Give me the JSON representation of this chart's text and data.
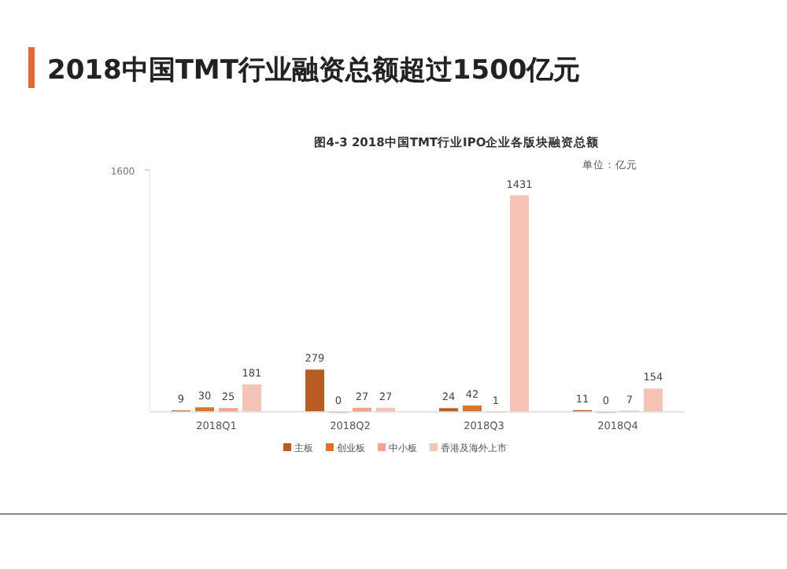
{
  "chart_data": {
    "type": "bar",
    "title": "2018中国TMT行业融资总额超过1500亿元",
    "subtitle": "图4-3 2018中国TMT行业IPO企业各版块融资总额",
    "annotations": [
      "单位：亿元"
    ],
    "categories": [
      "2018Q1",
      "2018Q2",
      "2018Q3",
      "2018Q4"
    ],
    "series": [
      {
        "name": "主板",
        "color": "#b85c22",
        "values": [
          9,
          279,
          24,
          11
        ]
      },
      {
        "name": "创业板",
        "color": "#d9742e",
        "values": [
          30,
          0,
          42,
          0
        ]
      },
      {
        "name": "中小板",
        "color": "#efa68a",
        "values": [
          25,
          27,
          1,
          7
        ]
      },
      {
        "name": "香港及海外上市",
        "color": "#f5c4b6",
        "values": [
          181,
          27,
          1431,
          154
        ]
      }
    ],
    "ylim": [
      0,
      1600
    ],
    "yticks": [
      1600
    ],
    "data_labels": true,
    "legend": "bottom",
    "grid": false
  }
}
